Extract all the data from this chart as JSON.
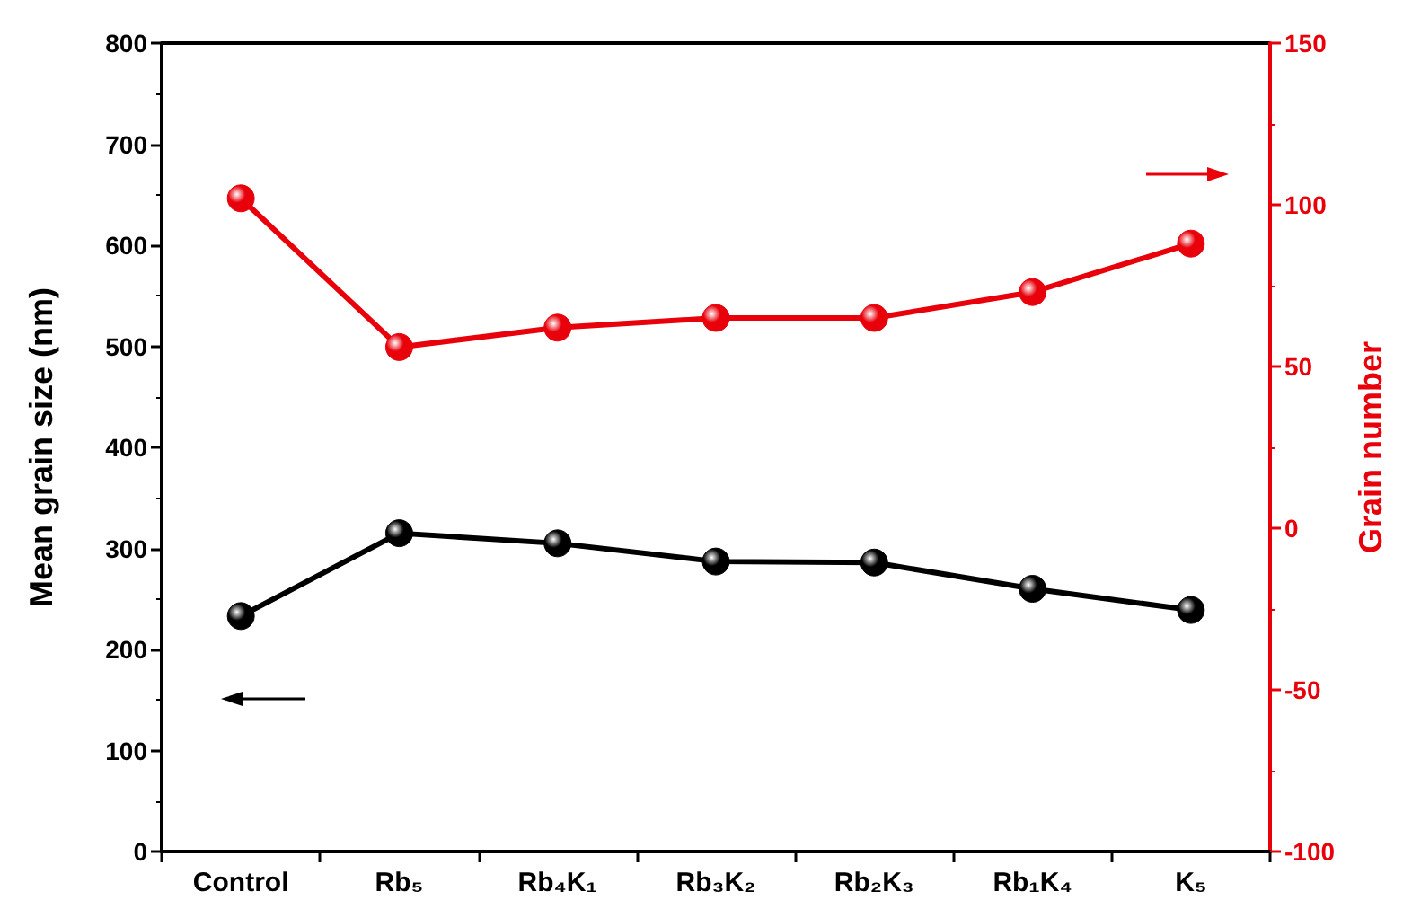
{
  "chart_data": {
    "type": "line",
    "xlabel": null,
    "ylabel": "Mean grain size (nm)",
    "y2label": "Grain number",
    "categories": [
      "Control",
      "Rb₅",
      "Rb₄K₁",
      "Rb₃K₂",
      "Rb₂K₃",
      "Rb₁K₄",
      "K₅"
    ],
    "series": [
      {
        "color": "#000000",
        "values": [
          233,
          315,
          305,
          287,
          286,
          260,
          239
        ]
      },
      {
        "color": "#e8000b",
        "axis": "y2",
        "values": [
          102,
          56,
          62,
          65,
          65,
          73,
          88
        ]
      }
    ],
    "ylim": [
      0,
      800
    ],
    "yticks": [
      0,
      100,
      200,
      300,
      400,
      500,
      600,
      700,
      800
    ],
    "y2lim": [
      -100,
      150
    ],
    "y2ticks": [
      -100,
      -50,
      0,
      50,
      100,
      150
    ],
    "marker": "circle",
    "line_style": "solid"
  }
}
